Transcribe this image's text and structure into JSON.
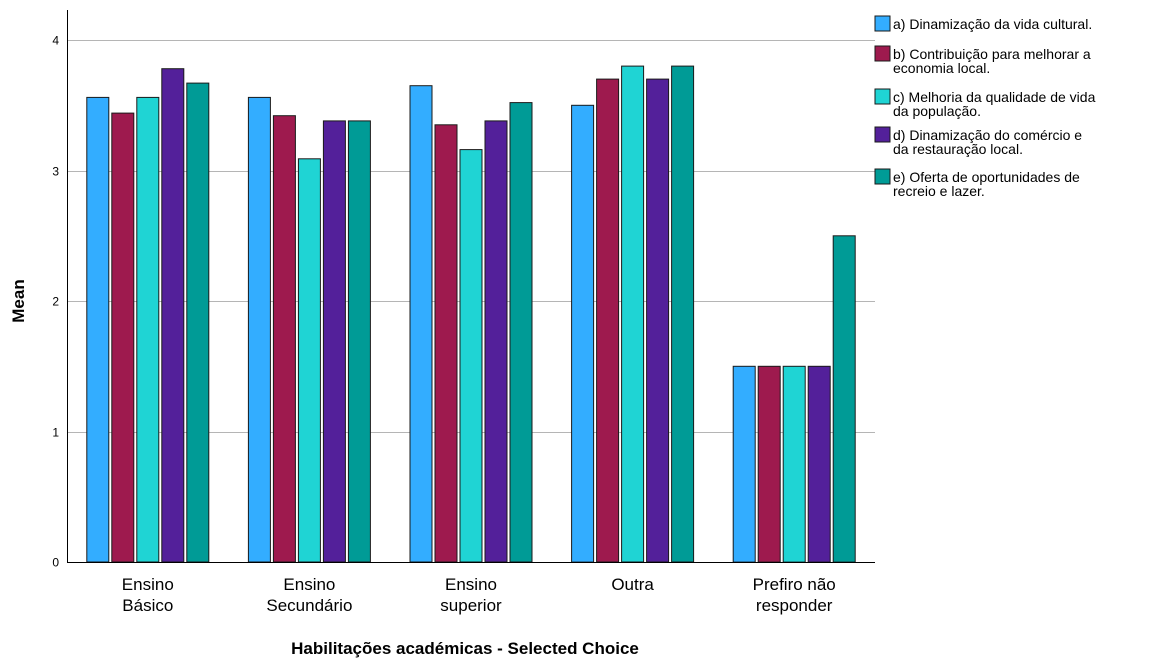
{
  "chart_data": {
    "type": "bar",
    "xlabel": "Habilitações académicas - Selected Choice",
    "ylabel": "Mean",
    "ylim": [
      0,
      4
    ],
    "yticks": [
      0,
      1,
      2,
      3,
      4
    ],
    "grid": true,
    "legend_position": "top-right",
    "categories": [
      [
        "Ensino",
        "Básico"
      ],
      [
        "Ensino",
        "Secundário"
      ],
      [
        "Ensino",
        "superior"
      ],
      [
        "Outra"
      ],
      [
        "Prefiro não",
        "responder"
      ]
    ],
    "series": [
      {
        "name": [
          "a) Dinamização da vida cultural."
        ],
        "color": "#33adff",
        "values": [
          3.56,
          3.56,
          3.65,
          3.5,
          1.5
        ]
      },
      {
        "name": [
          "b) Contribuição para melhorar a",
          "economia local."
        ],
        "color": "#9e1a4e",
        "values": [
          3.44,
          3.42,
          3.35,
          3.7,
          1.5
        ]
      },
      {
        "name": [
          "c) Melhoria da qualidade de vida",
          "da população."
        ],
        "color": "#1fd4d4",
        "values": [
          3.56,
          3.09,
          3.16,
          3.8,
          1.5
        ]
      },
      {
        "name": [
          "d) Dinamização do comércio e",
          "da restauração local."
        ],
        "color": "#53209a",
        "values": [
          3.78,
          3.38,
          3.38,
          3.7,
          1.5
        ]
      },
      {
        "name": [
          "e) Oferta de oportunidades de",
          "recreio e lazer."
        ],
        "color": "#009b96",
        "values": [
          3.67,
          3.38,
          3.52,
          3.8,
          2.5
        ]
      }
    ]
  }
}
